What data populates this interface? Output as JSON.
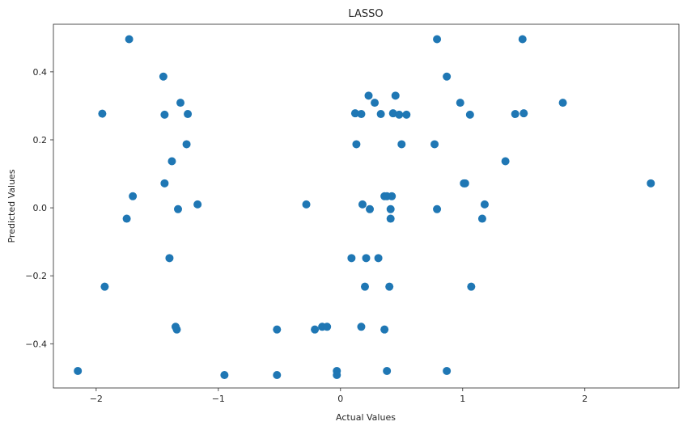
{
  "chart_data": {
    "type": "scatter",
    "title": "LASSO",
    "xlabel": "Actual Values",
    "ylabel": "Predicted Values",
    "xlim": [
      -2.35,
      2.77
    ],
    "ylim": [
      -0.53,
      0.54
    ],
    "xticks": [
      -2,
      -1,
      0,
      1,
      2
    ],
    "xtick_labels": [
      "−2",
      "−1",
      "0",
      "1",
      "2"
    ],
    "yticks": [
      -0.4,
      -0.2,
      0.0,
      0.2,
      0.4
    ],
    "ytick_labels": [
      "−0.4",
      "−0.2",
      "0.0",
      "0.2",
      "0.4"
    ],
    "grid": false,
    "marker_color": "#1f77b4",
    "points": [
      {
        "x": -2.15,
        "y": -0.48
      },
      {
        "x": -1.95,
        "y": 0.277
      },
      {
        "x": -1.93,
        "y": -0.232
      },
      {
        "x": -1.73,
        "y": 0.496
      },
      {
        "x": -1.75,
        "y": -0.032
      },
      {
        "x": -1.7,
        "y": 0.034
      },
      {
        "x": -1.45,
        "y": 0.386
      },
      {
        "x": -1.44,
        "y": 0.274
      },
      {
        "x": -1.44,
        "y": 0.072
      },
      {
        "x": -1.4,
        "y": -0.148
      },
      {
        "x": -1.38,
        "y": 0.137
      },
      {
        "x": -1.35,
        "y": -0.35
      },
      {
        "x": -1.34,
        "y": -0.358
      },
      {
        "x": -1.33,
        "y": -0.004
      },
      {
        "x": -1.31,
        "y": 0.309
      },
      {
        "x": -1.26,
        "y": 0.187
      },
      {
        "x": -1.25,
        "y": 0.276
      },
      {
        "x": -1.17,
        "y": 0.01
      },
      {
        "x": -0.95,
        "y": -0.492
      },
      {
        "x": -0.52,
        "y": -0.492
      },
      {
        "x": -0.52,
        "y": -0.358
      },
      {
        "x": -0.28,
        "y": 0.01
      },
      {
        "x": -0.21,
        "y": -0.358
      },
      {
        "x": -0.15,
        "y": -0.35
      },
      {
        "x": -0.11,
        "y": -0.35
      },
      {
        "x": -0.03,
        "y": -0.48
      },
      {
        "x": -0.03,
        "y": -0.492
      },
      {
        "x": 0.09,
        "y": -0.148
      },
      {
        "x": 0.12,
        "y": 0.278
      },
      {
        "x": 0.13,
        "y": 0.187
      },
      {
        "x": 0.17,
        "y": -0.35
      },
      {
        "x": 0.17,
        "y": 0.276
      },
      {
        "x": 0.18,
        "y": 0.01
      },
      {
        "x": 0.2,
        "y": -0.232
      },
      {
        "x": 0.21,
        "y": -0.148
      },
      {
        "x": 0.23,
        "y": 0.33
      },
      {
        "x": 0.24,
        "y": -0.004
      },
      {
        "x": 0.28,
        "y": 0.309
      },
      {
        "x": 0.31,
        "y": -0.148
      },
      {
        "x": 0.33,
        "y": 0.276
      },
      {
        "x": 0.36,
        "y": 0.034
      },
      {
        "x": 0.36,
        "y": -0.358
      },
      {
        "x": 0.38,
        "y": -0.48
      },
      {
        "x": 0.38,
        "y": 0.034
      },
      {
        "x": 0.4,
        "y": -0.232
      },
      {
        "x": 0.41,
        "y": -0.032
      },
      {
        "x": 0.41,
        "y": -0.004
      },
      {
        "x": 0.42,
        "y": 0.034
      },
      {
        "x": 0.43,
        "y": 0.278
      },
      {
        "x": 0.45,
        "y": 0.33
      },
      {
        "x": 0.48,
        "y": 0.274
      },
      {
        "x": 0.5,
        "y": 0.187
      },
      {
        "x": 0.54,
        "y": 0.274
      },
      {
        "x": 0.77,
        "y": 0.187
      },
      {
        "x": 0.79,
        "y": 0.496
      },
      {
        "x": 0.79,
        "y": -0.004
      },
      {
        "x": 0.87,
        "y": 0.386
      },
      {
        "x": 0.87,
        "y": -0.48
      },
      {
        "x": 0.98,
        "y": 0.309
      },
      {
        "x": 1.01,
        "y": 0.072
      },
      {
        "x": 1.02,
        "y": 0.072
      },
      {
        "x": 1.06,
        "y": 0.274
      },
      {
        "x": 1.07,
        "y": -0.232
      },
      {
        "x": 1.16,
        "y": -0.032
      },
      {
        "x": 1.18,
        "y": 0.01
      },
      {
        "x": 1.35,
        "y": 0.137
      },
      {
        "x": 1.43,
        "y": 0.276
      },
      {
        "x": 1.49,
        "y": 0.496
      },
      {
        "x": 1.5,
        "y": 0.278
      },
      {
        "x": 1.82,
        "y": 0.309
      },
      {
        "x": 2.54,
        "y": 0.072
      }
    ]
  }
}
